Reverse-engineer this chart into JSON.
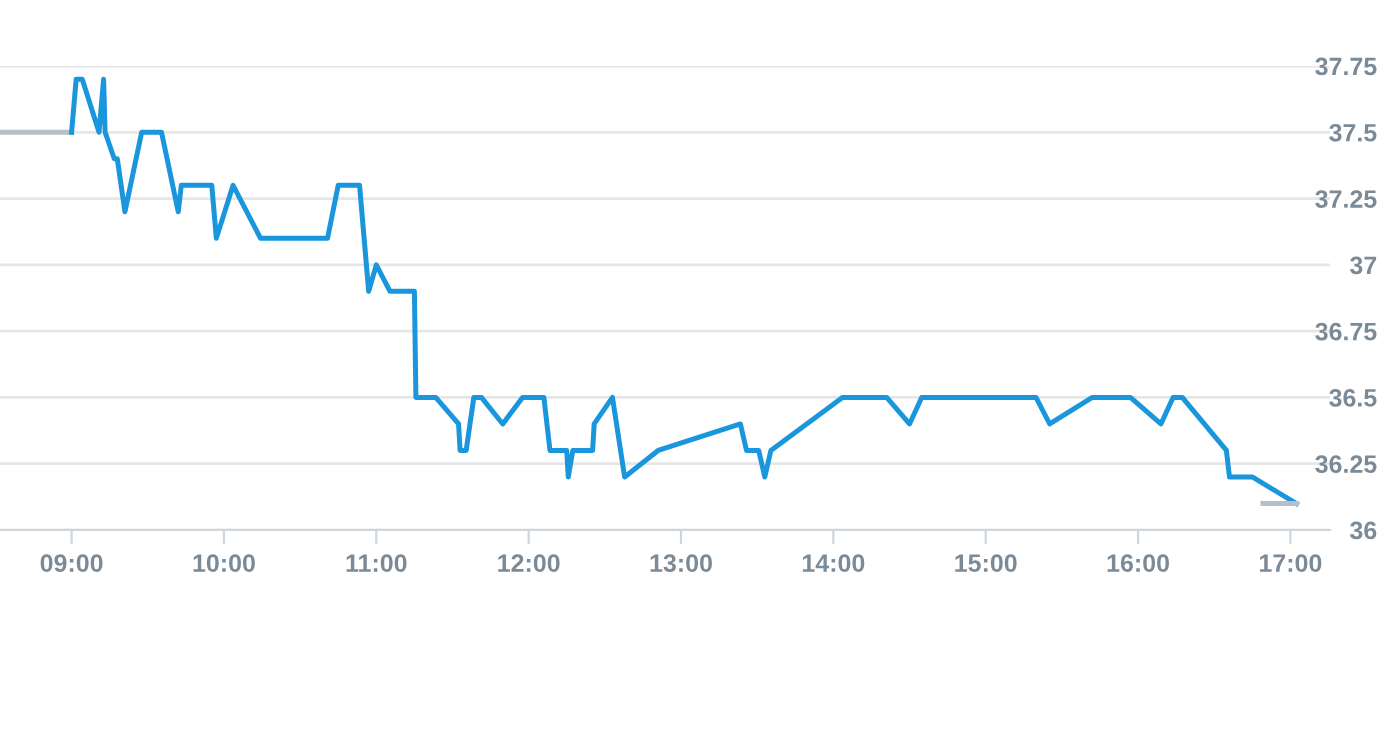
{
  "chart_data": {
    "type": "line",
    "series": [
      {
        "color": "#b4bfc8",
        "x": [
          8.53,
          9.0
        ],
        "values": [
          37.5,
          37.5
        ]
      },
      {
        "color": "#1a96dc",
        "x": [
          9.0,
          9.03,
          9.07,
          9.18,
          9.21,
          9.22,
          9.28,
          9.3,
          9.35,
          9.46,
          9.59,
          9.7,
          9.72,
          9.92,
          9.95,
          10.06,
          10.24,
          10.68,
          10.75,
          10.89,
          10.95,
          11.0,
          11.09,
          11.25,
          11.26,
          11.39,
          11.54,
          11.55,
          11.59,
          11.64,
          11.69,
          11.83,
          11.96,
          12.1,
          12.14,
          12.25,
          12.26,
          12.29,
          12.42,
          12.43,
          12.55,
          12.63,
          12.85,
          13.39,
          13.43,
          13.51,
          13.55,
          13.59,
          14.06,
          14.35,
          14.5,
          14.58,
          15.33,
          15.42,
          15.7,
          15.95,
          16.15,
          16.23,
          16.29,
          16.58,
          16.6,
          16.75,
          17.04
        ],
        "values": [
          37.5,
          37.7,
          37.7,
          37.5,
          37.7,
          37.5,
          37.4,
          37.4,
          37.2,
          37.5,
          37.5,
          37.2,
          37.3,
          37.3,
          37.1,
          37.3,
          37.1,
          37.1,
          37.3,
          37.3,
          36.9,
          37.0,
          36.9,
          36.9,
          36.5,
          36.5,
          36.4,
          36.3,
          36.3,
          36.5,
          36.5,
          36.4,
          36.5,
          36.5,
          36.3,
          36.3,
          36.2,
          36.3,
          36.3,
          36.4,
          36.5,
          36.2,
          36.3,
          36.4,
          36.3,
          36.3,
          36.2,
          36.3,
          36.5,
          36.5,
          36.4,
          36.5,
          36.5,
          36.4,
          36.5,
          36.5,
          36.4,
          36.5,
          36.5,
          36.3,
          36.2,
          36.2,
          36.1
        ]
      },
      {
        "color": "#b4bfc8",
        "x": [
          16.82,
          17.04
        ],
        "values": [
          36.1,
          36.1
        ]
      }
    ],
    "xlim": [
      8.53,
      17.26
    ],
    "xticks": [
      {
        "value": 9,
        "label": "09:00"
      },
      {
        "value": 10,
        "label": "10:00"
      },
      {
        "value": 11,
        "label": "11:00"
      },
      {
        "value": 12,
        "label": "12:00"
      },
      {
        "value": 13,
        "label": "13:00"
      },
      {
        "value": 14,
        "label": "14:00"
      },
      {
        "value": 15,
        "label": "15:00"
      },
      {
        "value": 16,
        "label": "16:00"
      },
      {
        "value": 17,
        "label": "17:00"
      }
    ],
    "ylim": [
      36,
      37.75
    ],
    "yticks": [
      36,
      36.25,
      36.5,
      36.75,
      37,
      37.25,
      37.5,
      37.75
    ],
    "grid": "y",
    "legend": false,
    "marker": "none",
    "line_style": "solid"
  }
}
